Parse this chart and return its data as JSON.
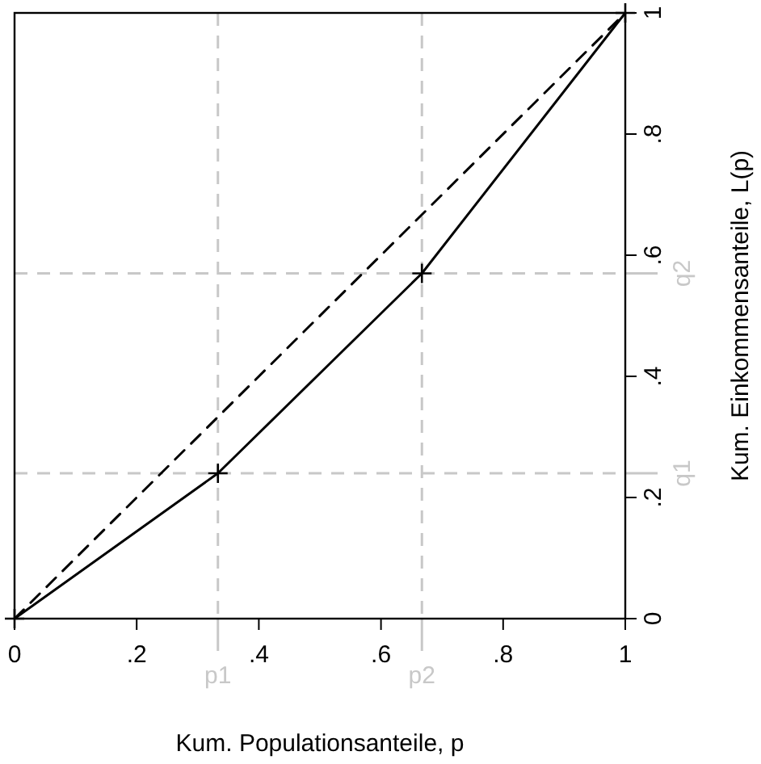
{
  "chart_data": {
    "type": "line",
    "xlabel": "Kum. Populationsanteile, p",
    "ylabel": "Kum. Einkommensanteile, L(p)",
    "series": [
      {
        "x": [
          0,
          0.333,
          0.667,
          1
        ],
        "values": [
          0,
          0.24,
          0.57,
          1
        ],
        "color": "#000000",
        "marker": "cross",
        "line_style": "solid"
      },
      {
        "x": [
          0,
          1
        ],
        "values": [
          0,
          1
        ],
        "color": "#000000",
        "marker": "none",
        "line_style": "dashed"
      }
    ],
    "xlim": [
      0,
      1
    ],
    "ylim": [
      0,
      1
    ],
    "xticks": [
      0,
      {
        "value": 0.2,
        "label": ".2"
      },
      {
        "value": 0.4,
        "label": ".4"
      },
      {
        "value": 0.6,
        "label": ".6"
      },
      {
        "value": 0.8,
        "label": ".8"
      },
      1
    ],
    "yticks": [
      0,
      {
        "value": 0.2,
        "label": ".2"
      },
      {
        "value": 0.4,
        "label": ".4"
      },
      {
        "value": 0.6,
        "label": ".6"
      },
      {
        "value": 0.8,
        "label": ".8"
      },
      1
    ],
    "ref_lines": [
      {
        "axis": "x",
        "value": 0.333,
        "label": "p1",
        "color": "#c8c8c8",
        "line_style": "dashed"
      },
      {
        "axis": "x",
        "value": 0.667,
        "label": "p2",
        "color": "#c8c8c8",
        "line_style": "dashed"
      },
      {
        "axis": "y",
        "value": 0.24,
        "label": "q1",
        "color": "#c8c8c8",
        "line_style": "dashed"
      },
      {
        "axis": "y",
        "value": 0.57,
        "label": "q2",
        "color": "#c8c8c8",
        "line_style": "dashed"
      }
    ],
    "grid": false
  }
}
